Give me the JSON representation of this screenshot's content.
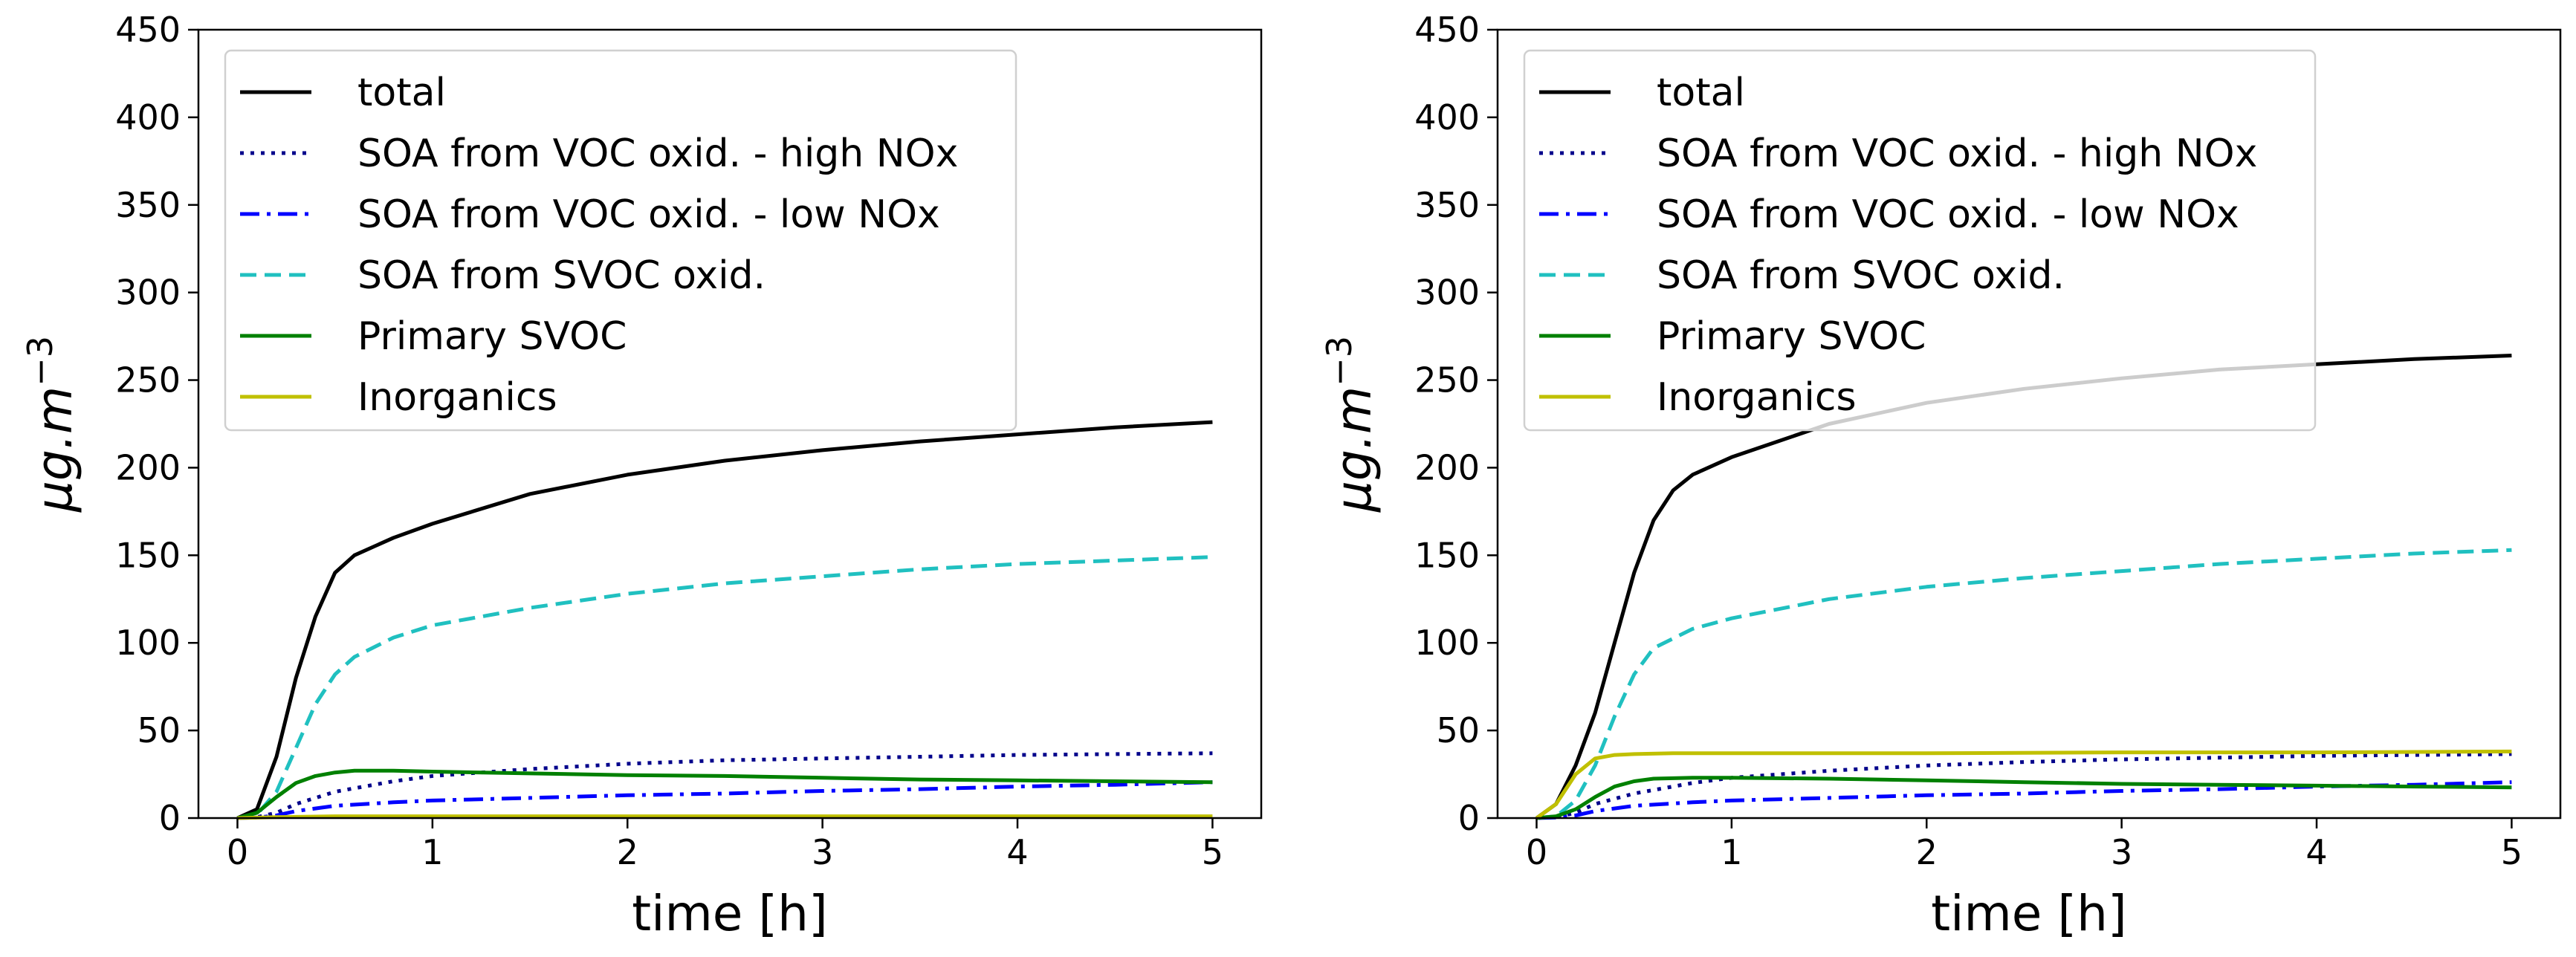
{
  "chart_data": [
    {
      "type": "line",
      "xlabel": "time [h]",
      "ylabel_base": "μg.m",
      "ylabel_exp": "−3",
      "xlim": [
        -0.2,
        5.25
      ],
      "ylim": [
        0,
        450
      ],
      "xticks": [
        0,
        1,
        2,
        3,
        4,
        5
      ],
      "yticks": [
        0,
        50,
        100,
        150,
        200,
        250,
        300,
        350,
        400,
        450
      ],
      "legend": "top-left",
      "grid": false,
      "series": [
        {
          "name": "total",
          "color": "#000000",
          "dash": "solid",
          "x": [
            0,
            0.1,
            0.2,
            0.3,
            0.4,
            0.5,
            0.6,
            0.8,
            1.0,
            1.5,
            2.0,
            2.5,
            3.0,
            3.5,
            4.0,
            4.5,
            5.0
          ],
          "y": [
            0,
            5,
            35,
            80,
            115,
            140,
            150,
            160,
            168,
            185,
            196,
            204,
            210,
            215,
            219,
            223,
            226
          ]
        },
        {
          "name": "SOA from VOC oxid. - high NOx",
          "color": "#00008b",
          "dash": "dotted",
          "x": [
            0,
            0.1,
            0.2,
            0.3,
            0.5,
            0.8,
            1.0,
            1.5,
            2.0,
            2.5,
            3.0,
            3.5,
            4.0,
            4.5,
            5.0
          ],
          "y": [
            0,
            0.5,
            3,
            8,
            15,
            21,
            24,
            28,
            31,
            33,
            34,
            35,
            36,
            36.5,
            37
          ]
        },
        {
          "name": "SOA from VOC oxid. - low NOx",
          "color": "#0000ff",
          "dash": "dashdot",
          "x": [
            0,
            0.1,
            0.2,
            0.3,
            0.5,
            0.8,
            1.0,
            1.5,
            2.0,
            2.5,
            3.0,
            3.5,
            4.0,
            4.5,
            5.0
          ],
          "y": [
            0,
            0.3,
            1.5,
            4,
            7,
            9,
            10,
            11.5,
            13,
            14,
            15.5,
            16.5,
            18,
            19,
            20.5
          ]
        },
        {
          "name": "SOA from SVOC oxid.",
          "color": "#20c0c0",
          "dash": "dashed",
          "x": [
            0,
            0.1,
            0.2,
            0.3,
            0.4,
            0.5,
            0.6,
            0.8,
            1.0,
            1.5,
            2.0,
            2.5,
            3.0,
            3.5,
            4.0,
            4.5,
            5.0
          ],
          "y": [
            0,
            2,
            15,
            40,
            65,
            82,
            92,
            103,
            110,
            120,
            128,
            134,
            138,
            142,
            145,
            147,
            149
          ]
        },
        {
          "name": "Primary SVOC",
          "color": "#008000",
          "dash": "solid",
          "x": [
            0,
            0.1,
            0.2,
            0.3,
            0.4,
            0.5,
            0.6,
            0.8,
            1.0,
            1.5,
            2.0,
            2.5,
            3.0,
            3.5,
            4.0,
            4.5,
            5.0
          ],
          "y": [
            0,
            3,
            12,
            20,
            24,
            26,
            27,
            27,
            26.5,
            25.5,
            24.5,
            24,
            23,
            22,
            21.5,
            21,
            20.5
          ]
        },
        {
          "name": "Inorganics",
          "color": "#c0c000",
          "dash": "solid",
          "x": [
            0,
            0.2,
            0.5,
            1.0,
            2.0,
            3.0,
            4.0,
            5.0
          ],
          "y": [
            0,
            0.5,
            1,
            1,
            1,
            1,
            1,
            1
          ]
        }
      ]
    },
    {
      "type": "line",
      "xlabel": "time [h]",
      "ylabel_base": "μg.m",
      "ylabel_exp": "−3",
      "xlim": [
        -0.2,
        5.25
      ],
      "ylim": [
        0,
        450
      ],
      "xticks": [
        0,
        1,
        2,
        3,
        4,
        5
      ],
      "yticks": [
        0,
        50,
        100,
        150,
        200,
        250,
        300,
        350,
        400,
        450
      ],
      "legend": "top-left",
      "grid": false,
      "series": [
        {
          "name": "total",
          "color": "#000000",
          "dash": "solid",
          "x": [
            0,
            0.1,
            0.2,
            0.3,
            0.4,
            0.5,
            0.6,
            0.7,
            0.8,
            1.0,
            1.5,
            2.0,
            2.5,
            3.0,
            3.5,
            4.0,
            4.5,
            5.0
          ],
          "y": [
            0,
            8,
            30,
            60,
            100,
            140,
            170,
            187,
            196,
            206,
            225,
            237,
            245,
            251,
            256,
            259,
            262,
            264
          ]
        },
        {
          "name": "SOA from VOC oxid. - high NOx",
          "color": "#00008b",
          "dash": "dotted",
          "x": [
            0,
            0.1,
            0.2,
            0.3,
            0.5,
            0.8,
            1.0,
            1.5,
            2.0,
            2.5,
            3.0,
            3.5,
            4.0,
            4.5,
            5.0
          ],
          "y": [
            0,
            0.5,
            3,
            8,
            14,
            20,
            23,
            27,
            30,
            32,
            33.5,
            34.5,
            35.5,
            36,
            36.5
          ]
        },
        {
          "name": "SOA from VOC oxid. - low NOx",
          "color": "#0000ff",
          "dash": "dashdot",
          "x": [
            0,
            0.1,
            0.2,
            0.3,
            0.5,
            0.8,
            1.0,
            1.5,
            2.0,
            2.5,
            3.0,
            3.5,
            4.0,
            4.5,
            5.0
          ],
          "y": [
            0,
            0.3,
            1.5,
            4,
            7,
            9,
            10,
            11.5,
            13,
            14,
            15.5,
            16.5,
            18,
            19,
            20.5
          ]
        },
        {
          "name": "SOA from SVOC oxid.",
          "color": "#20c0c0",
          "dash": "dashed",
          "x": [
            0,
            0.1,
            0.2,
            0.3,
            0.4,
            0.5,
            0.6,
            0.8,
            1.0,
            1.5,
            2.0,
            2.5,
            3.0,
            3.5,
            4.0,
            4.5,
            5.0
          ],
          "y": [
            0,
            1,
            10,
            30,
            58,
            82,
            97,
            108,
            114,
            125,
            132,
            137,
            141,
            145,
            148,
            151,
            153
          ]
        },
        {
          "name": "Primary SVOC",
          "color": "#008000",
          "dash": "solid",
          "x": [
            0,
            0.1,
            0.2,
            0.3,
            0.4,
            0.5,
            0.6,
            0.8,
            1.0,
            1.5,
            2.0,
            2.5,
            3.0,
            3.5,
            4.0,
            4.5,
            5.0
          ],
          "y": [
            0,
            1,
            5,
            12,
            18,
            21,
            22.5,
            23,
            23,
            22.5,
            21.5,
            20.5,
            19.5,
            19,
            18.5,
            18,
            17.5
          ]
        },
        {
          "name": "Inorganics",
          "color": "#c0c000",
          "dash": "solid",
          "x": [
            0,
            0.1,
            0.2,
            0.3,
            0.4,
            0.5,
            0.7,
            1.0,
            2.0,
            3.0,
            4.0,
            5.0
          ],
          "y": [
            0,
            8,
            25,
            34,
            36,
            36.5,
            37,
            37,
            37,
            37.5,
            37.5,
            38
          ]
        }
      ]
    }
  ]
}
